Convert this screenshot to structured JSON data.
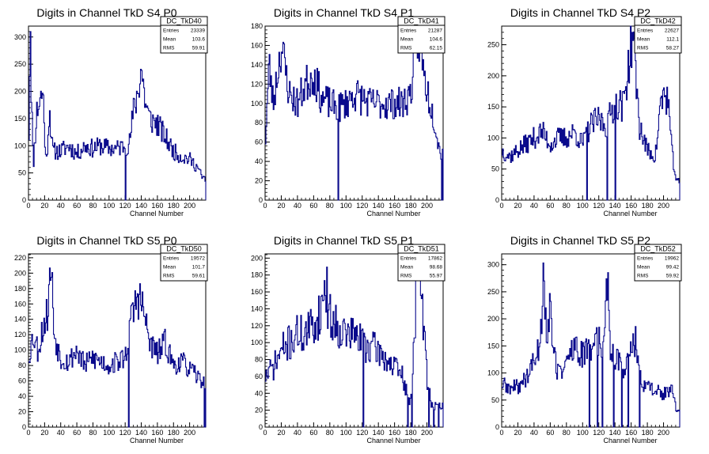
{
  "layout": {
    "columns": 3,
    "rows": 2
  },
  "style": {
    "line_color": "#0a0a8c",
    "frame_color": "#000000",
    "background": "#ffffff"
  },
  "chart_data": [
    {
      "type": "histogram",
      "title": "Digits in Channel TkD S4 P0",
      "xlabel": "Channel Number",
      "xlim": [
        0,
        220
      ],
      "ylim": [
        0,
        320
      ],
      "xticks": [
        0,
        20,
        40,
        60,
        80,
        100,
        120,
        140,
        160,
        180,
        200
      ],
      "yticks": [
        0,
        50,
        100,
        150,
        200,
        250,
        300
      ],
      "stats": {
        "name": "DC_TkD40",
        "rows": [
          [
            "Entries",
            "23339"
          ],
          [
            "Mean",
            "103.6"
          ],
          [
            "RMS",
            "59.91"
          ]
        ]
      },
      "profile": [
        [
          0,
          60
        ],
        [
          2,
          310
        ],
        [
          4,
          180
        ],
        [
          6,
          60
        ],
        [
          10,
          160
        ],
        [
          14,
          185
        ],
        [
          18,
          200
        ],
        [
          22,
          60
        ],
        [
          26,
          170
        ],
        [
          30,
          90
        ],
        [
          40,
          90
        ],
        [
          50,
          100
        ],
        [
          60,
          85
        ],
        [
          70,
          100
        ],
        [
          80,
          95
        ],
        [
          90,
          100
        ],
        [
          100,
          95
        ],
        [
          110,
          95
        ],
        [
          118,
          100
        ],
        [
          125,
          100
        ],
        [
          130,
          160
        ],
        [
          136,
          200
        ],
        [
          140,
          245
        ],
        [
          145,
          180
        ],
        [
          150,
          150
        ],
        [
          160,
          140
        ],
        [
          170,
          115
        ],
        [
          180,
          90
        ],
        [
          190,
          80
        ],
        [
          200,
          75
        ],
        [
          210,
          60
        ],
        [
          216,
          40
        ],
        [
          220,
          40
        ]
      ],
      "noise": 0.18,
      "seed": 11,
      "spikes": [
        [
          120,
          0
        ],
        [
          2,
          310
        ]
      ]
    },
    {
      "type": "histogram",
      "title": "Digits in Channel TkD S4 P1",
      "xlabel": "Channel Number",
      "xlim": [
        0,
        220
      ],
      "ylim": [
        0,
        180
      ],
      "xticks": [
        0,
        20,
        40,
        60,
        80,
        100,
        120,
        140,
        160,
        180,
        200
      ],
      "yticks": [
        0,
        20,
        40,
        60,
        80,
        100,
        120,
        140,
        160,
        180
      ],
      "stats": {
        "name": "DC_TkD41",
        "rows": [
          [
            "Entries",
            "21287"
          ],
          [
            "Mean",
            "104.6"
          ],
          [
            "RMS",
            "62.15"
          ]
        ]
      },
      "profile": [
        [
          0,
          55
        ],
        [
          5,
          140
        ],
        [
          10,
          100
        ],
        [
          20,
          160
        ],
        [
          30,
          110
        ],
        [
          40,
          100
        ],
        [
          50,
          120
        ],
        [
          60,
          130
        ],
        [
          70,
          105
        ],
        [
          80,
          100
        ],
        [
          90,
          95
        ],
        [
          100,
          100
        ],
        [
          110,
          110
        ],
        [
          120,
          105
        ],
        [
          130,
          100
        ],
        [
          140,
          100
        ],
        [
          150,
          100
        ],
        [
          160,
          100
        ],
        [
          170,
          100
        ],
        [
          180,
          110
        ],
        [
          186,
          160
        ],
        [
          192,
          170
        ],
        [
          196,
          130
        ],
        [
          200,
          115
        ],
        [
          210,
          80
        ],
        [
          216,
          50
        ],
        [
          220,
          50
        ]
      ],
      "noise": 0.17,
      "seed": 23,
      "spikes": [
        [
          90,
          0
        ],
        [
          218,
          0
        ]
      ]
    },
    {
      "type": "histogram",
      "title": "Digits in Channel TkD S4 P2",
      "xlabel": "Channel Number",
      "xlim": [
        0,
        220
      ],
      "ylim": [
        0,
        280
      ],
      "xticks": [
        0,
        20,
        40,
        60,
        80,
        100,
        120,
        140,
        160,
        180,
        200
      ],
      "yticks": [
        0,
        50,
        100,
        150,
        200,
        250
      ],
      "stats": {
        "name": "DC_TkD42",
        "rows": [
          [
            "Entries",
            "22627"
          ],
          [
            "Mean",
            "112.1"
          ],
          [
            "RMS",
            "58.27"
          ]
        ]
      },
      "profile": [
        [
          0,
          80
        ],
        [
          10,
          70
        ],
        [
          20,
          80
        ],
        [
          30,
          90
        ],
        [
          40,
          100
        ],
        [
          50,
          110
        ],
        [
          60,
          90
        ],
        [
          70,
          100
        ],
        [
          80,
          100
        ],
        [
          90,
          110
        ],
        [
          100,
          90
        ],
        [
          110,
          120
        ],
        [
          120,
          130
        ],
        [
          130,
          120
        ],
        [
          140,
          160
        ],
        [
          150,
          150
        ],
        [
          158,
          230
        ],
        [
          162,
          270
        ],
        [
          166,
          200
        ],
        [
          170,
          120
        ],
        [
          180,
          80
        ],
        [
          190,
          70
        ],
        [
          196,
          150
        ],
        [
          200,
          170
        ],
        [
          206,
          160
        ],
        [
          210,
          80
        ],
        [
          216,
          30
        ],
        [
          220,
          30
        ]
      ],
      "noise": 0.18,
      "seed": 37,
      "spikes": [
        [
          105,
          0
        ],
        [
          130,
          0
        ],
        [
          140,
          0
        ]
      ]
    },
    {
      "type": "histogram",
      "title": "Digits in Channel TkD S5 P0",
      "xlabel": "Channel Number",
      "xlim": [
        0,
        220
      ],
      "ylim": [
        0,
        225
      ],
      "xticks": [
        0,
        20,
        40,
        60,
        80,
        100,
        120,
        140,
        160,
        180,
        200
      ],
      "yticks": [
        0,
        20,
        40,
        60,
        80,
        100,
        120,
        140,
        160,
        180,
        200,
        220
      ],
      "stats": {
        "name": "DC_TkD50",
        "rows": [
          [
            "Entries",
            "19572"
          ],
          [
            "Mean",
            "101.7"
          ],
          [
            "RMS",
            "59.61"
          ]
        ]
      },
      "profile": [
        [
          0,
          90
        ],
        [
          6,
          120
        ],
        [
          12,
          100
        ],
        [
          18,
          130
        ],
        [
          24,
          150
        ],
        [
          28,
          215
        ],
        [
          32,
          120
        ],
        [
          40,
          90
        ],
        [
          50,
          85
        ],
        [
          60,
          100
        ],
        [
          70,
          80
        ],
        [
          80,
          90
        ],
        [
          90,
          85
        ],
        [
          100,
          80
        ],
        [
          110,
          85
        ],
        [
          120,
          90
        ],
        [
          126,
          130
        ],
        [
          132,
          160
        ],
        [
          138,
          170
        ],
        [
          145,
          140
        ],
        [
          150,
          110
        ],
        [
          160,
          95
        ],
        [
          170,
          110
        ],
        [
          180,
          80
        ],
        [
          190,
          85
        ],
        [
          200,
          75
        ],
        [
          210,
          65
        ],
        [
          216,
          60
        ],
        [
          220,
          60
        ]
      ],
      "noise": 0.17,
      "seed": 53,
      "spikes": [
        [
          124,
          0
        ],
        [
          218,
          0
        ]
      ]
    },
    {
      "type": "histogram",
      "title": "Digits in Channel TkD S5 P1",
      "xlabel": "Channel Number",
      "xlim": [
        0,
        220
      ],
      "ylim": [
        0,
        205
      ],
      "xticks": [
        0,
        20,
        40,
        60,
        80,
        100,
        120,
        140,
        160,
        180,
        200
      ],
      "yticks": [
        0,
        20,
        40,
        60,
        80,
        100,
        120,
        140,
        160,
        180,
        200
      ],
      "stats": {
        "name": "DC_TkD51",
        "rows": [
          [
            "Entries",
            "17862"
          ],
          [
            "Mean",
            "98.68"
          ],
          [
            "RMS",
            "55.97"
          ]
        ]
      },
      "profile": [
        [
          0,
          60
        ],
        [
          10,
          70
        ],
        [
          20,
          90
        ],
        [
          30,
          100
        ],
        [
          40,
          110
        ],
        [
          50,
          110
        ],
        [
          60,
          120
        ],
        [
          70,
          140
        ],
        [
          74,
          175
        ],
        [
          80,
          130
        ],
        [
          90,
          120
        ],
        [
          100,
          110
        ],
        [
          110,
          110
        ],
        [
          120,
          100
        ],
        [
          130,
          95
        ],
        [
          140,
          90
        ],
        [
          150,
          80
        ],
        [
          160,
          70
        ],
        [
          170,
          60
        ],
        [
          175,
          40
        ],
        [
          180,
          30
        ],
        [
          185,
          120
        ],
        [
          188,
          200
        ],
        [
          192,
          180
        ],
        [
          196,
          120
        ],
        [
          200,
          60
        ],
        [
          205,
          30
        ],
        [
          210,
          25
        ],
        [
          220,
          25
        ]
      ],
      "noise": 0.22,
      "seed": 71,
      "spikes": [
        [
          121,
          0
        ],
        [
          176,
          0
        ],
        [
          181,
          0
        ],
        [
          202,
          0
        ],
        [
          208,
          0
        ],
        [
          214,
          0
        ]
      ]
    },
    {
      "type": "histogram",
      "title": "Digits in Channel TkD S5 P2",
      "xlabel": "Channel Number",
      "xlim": [
        0,
        220
      ],
      "ylim": [
        0,
        320
      ],
      "xticks": [
        0,
        20,
        40,
        60,
        80,
        100,
        120,
        140,
        160,
        180,
        200
      ],
      "yticks": [
        0,
        50,
        100,
        150,
        200,
        250,
        300
      ],
      "stats": {
        "name": "DC_TkD52",
        "rows": [
          [
            "Entries",
            "19962"
          ],
          [
            "Mean",
            "99.42"
          ],
          [
            "RMS",
            "59.92"
          ]
        ]
      },
      "profile": [
        [
          0,
          80
        ],
        [
          10,
          70
        ],
        [
          20,
          75
        ],
        [
          30,
          90
        ],
        [
          40,
          120
        ],
        [
          48,
          160
        ],
        [
          52,
          300
        ],
        [
          56,
          160
        ],
        [
          60,
          220
        ],
        [
          66,
          120
        ],
        [
          70,
          100
        ],
        [
          80,
          120
        ],
        [
          90,
          150
        ],
        [
          100,
          130
        ],
        [
          110,
          150
        ],
        [
          116,
          170
        ],
        [
          120,
          160
        ],
        [
          126,
          140
        ],
        [
          130,
          310
        ],
        [
          134,
          150
        ],
        [
          140,
          130
        ],
        [
          150,
          110
        ],
        [
          160,
          140
        ],
        [
          166,
          160
        ],
        [
          170,
          90
        ],
        [
          180,
          75
        ],
        [
          190,
          70
        ],
        [
          200,
          60
        ],
        [
          210,
          70
        ],
        [
          216,
          30
        ],
        [
          220,
          30
        ]
      ],
      "noise": 0.2,
      "seed": 89,
      "spikes": [
        [
          108,
          0
        ],
        [
          118,
          0
        ],
        [
          124,
          0
        ],
        [
          138,
          0
        ],
        [
          148,
          0
        ],
        [
          156,
          0
        ],
        [
          170,
          0
        ]
      ]
    }
  ]
}
